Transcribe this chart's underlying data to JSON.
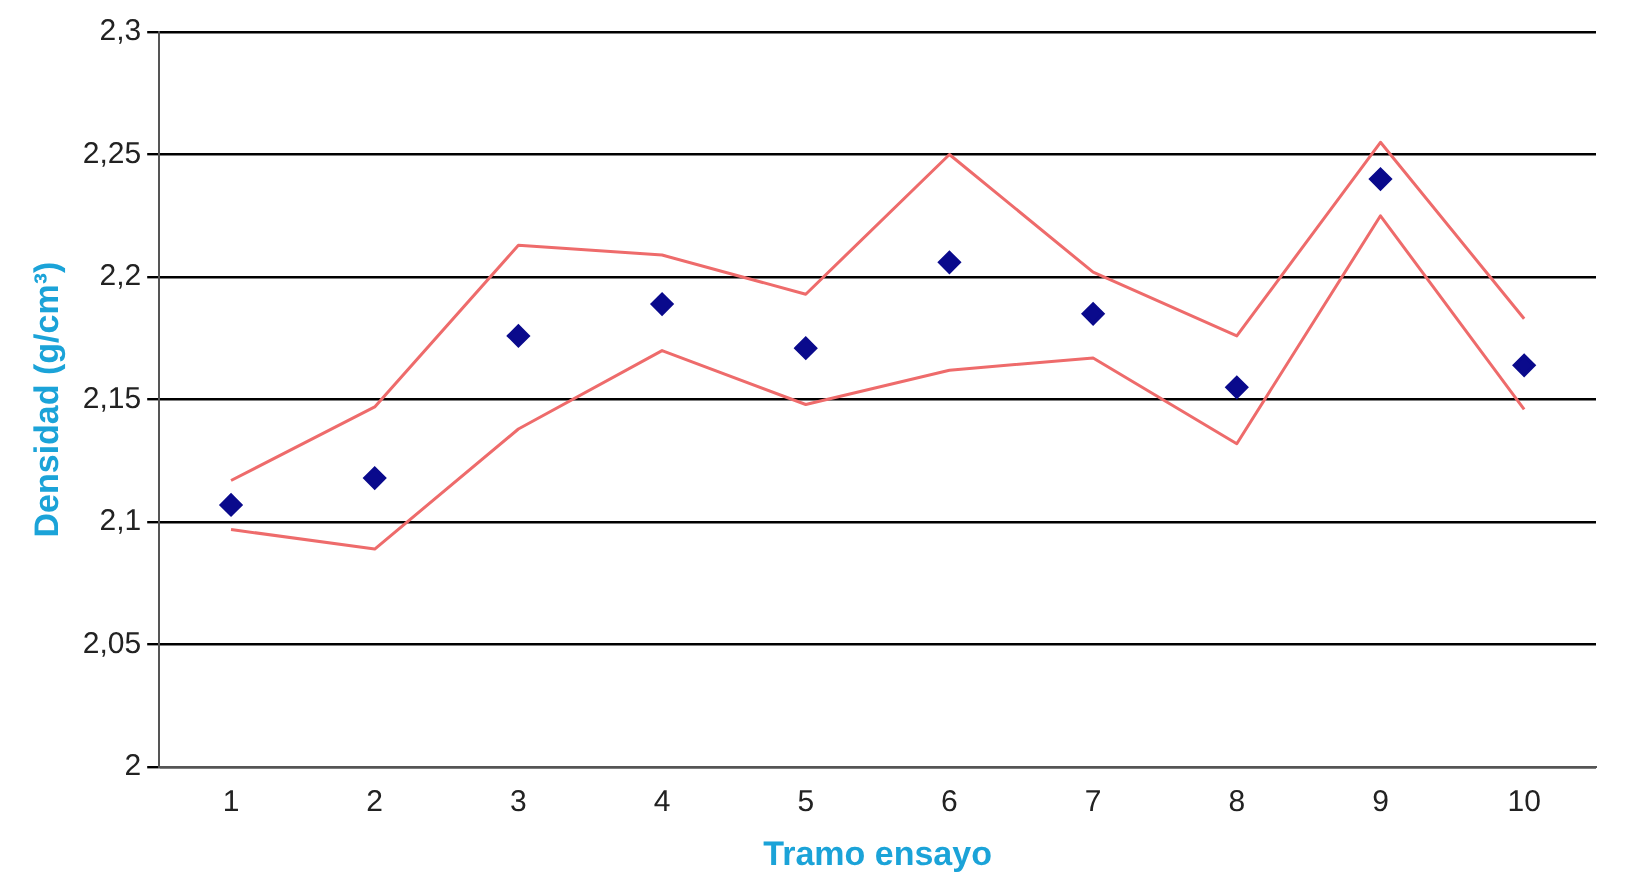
{
  "chart_data": {
    "type": "line",
    "xlabel": "Tramo ensayo",
    "ylabel": "Densidad (g/cm³)",
    "categories": [
      "1",
      "2",
      "3",
      "4",
      "5",
      "6",
      "7",
      "8",
      "9",
      "10"
    ],
    "series": [
      {
        "type": "line",
        "color": "#ee6b6b",
        "marker": "none",
        "values": [
          2.117,
          2.147,
          2.213,
          2.209,
          2.193,
          2.25,
          2.202,
          2.176,
          2.255,
          2.183
        ]
      },
      {
        "type": "line",
        "color": "#ee6b6b",
        "marker": "none",
        "values": [
          2.097,
          2.089,
          2.138,
          2.17,
          2.148,
          2.162,
          2.167,
          2.132,
          2.225,
          2.146
        ]
      },
      {
        "type": "scatter",
        "color": "#0a0a8c",
        "marker": "diamond",
        "values": [
          2.107,
          2.118,
          2.176,
          2.189,
          2.171,
          2.206,
          2.185,
          2.155,
          2.24,
          2.164
        ]
      }
    ],
    "ylim": [
      2,
      2.3
    ],
    "yticks": [
      {
        "value": 2,
        "label": "2"
      },
      {
        "value": 2.05,
        "label": "2,05"
      },
      {
        "value": 2.1,
        "label": "2,1"
      },
      {
        "value": 2.15,
        "label": "2,15"
      },
      {
        "value": 2.2,
        "label": "2,2"
      },
      {
        "value": 2.25,
        "label": "2,25"
      },
      {
        "value": 2.3,
        "label": "2,3"
      }
    ],
    "grid": "y",
    "legend": false
  }
}
